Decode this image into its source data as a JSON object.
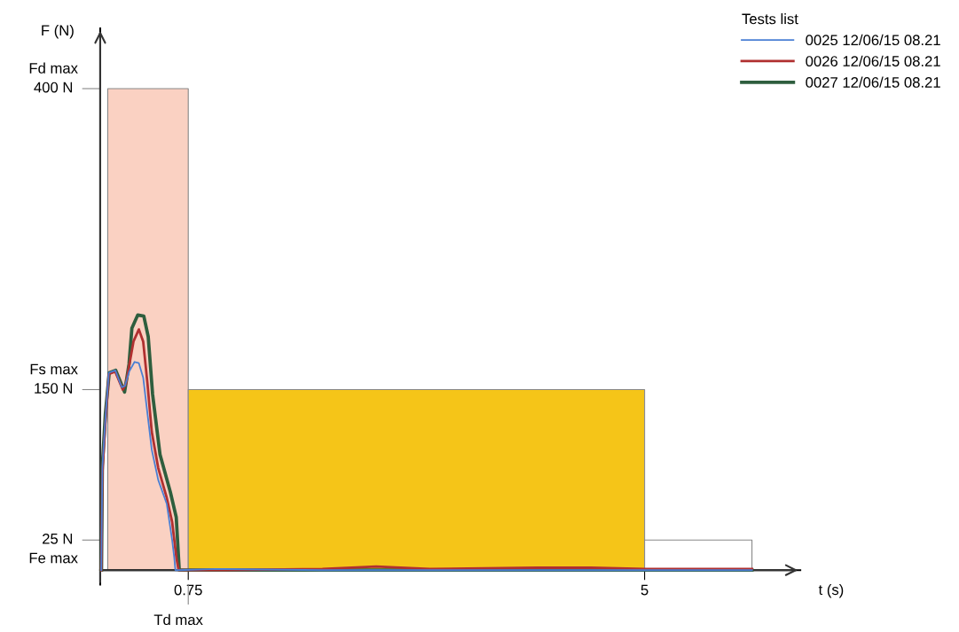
{
  "chart_data": {
    "type": "line",
    "xlabel": "t (s)",
    "ylabel": "F (N)",
    "legend_title": "Tests list",
    "legend": "top right",
    "grid": false,
    "marker": "none",
    "line_style": "solid",
    "xlim": [
      -0.07,
      6.45
    ],
    "ylim": [
      -12,
      450
    ],
    "xticks": [
      0.75,
      5
    ],
    "yticks": [
      {
        "value": 25,
        "label": "25 N"
      },
      {
        "value": 150,
        "label": "150 N"
      },
      {
        "value": 400,
        "label": "400 N"
      }
    ],
    "ref_lines": [
      {
        "axis": "y",
        "value": 400,
        "label": "Fd max",
        "color": "#888888"
      },
      {
        "axis": "y",
        "value": 150,
        "label": "Fs max",
        "color": "#888888"
      },
      {
        "axis": "y",
        "value": 25,
        "label": "Fe max",
        "color": "#888888"
      },
      {
        "axis": "x",
        "value": 0.75,
        "label": "Td max",
        "color": "#888888"
      }
    ],
    "series": [
      {
        "type": "area",
        "color": "#fad1c2",
        "x": [
          0,
          0.75
        ],
        "values": [
          400,
          400
        ]
      },
      {
        "type": "area",
        "color": "#f5c518",
        "x": [
          0.75,
          5
        ],
        "values": [
          150,
          150
        ]
      },
      {
        "type": "area",
        "color": "#ffffff",
        "x": [
          5,
          6
        ],
        "values": [
          25,
          25
        ]
      },
      {
        "name": "0025 12/06/15 08.21",
        "color": "#4a7fd4",
        "x": [
          -0.06,
          -0.05,
          -0.02,
          0.01,
          0.07,
          0.13,
          0.16,
          0.2,
          0.25,
          0.29,
          0.33,
          0.37,
          0.41,
          0.47,
          0.55,
          0.6,
          0.62,
          0.63,
          0.66,
          1.0,
          2.0,
          3.0,
          4.0,
          5.0,
          6.0
        ],
        "values": [
          0,
          85,
          128,
          164,
          166,
          152,
          153,
          165,
          173,
          172,
          160,
          130,
          100,
          75,
          55,
          25,
          10,
          0,
          0,
          1,
          0,
          0,
          0,
          0,
          0
        ]
      },
      {
        "name": "0026 12/06/15 08.21",
        "color": "#b03030",
        "x": [
          -0.06,
          -0.05,
          -0.02,
          0.01,
          0.07,
          0.14,
          0.17,
          0.2,
          0.24,
          0.29,
          0.33,
          0.37,
          0.41,
          0.47,
          0.55,
          0.6,
          0.64,
          0.66,
          1.0,
          2.0,
          2.5,
          3.0,
          4.0,
          4.5,
          5.0,
          6.0
        ],
        "values": [
          0,
          80,
          125,
          163,
          165,
          150,
          155,
          170,
          190,
          200,
          190,
          155,
          115,
          85,
          60,
          40,
          10,
          0,
          0,
          1,
          3,
          1,
          2,
          2,
          1,
          1
        ]
      },
      {
        "name": "0027 12/06/15 08.21",
        "color": "#2e5e3e",
        "x": [
          -0.058,
          -0.05,
          -0.022,
          0.014,
          0.074,
          0.157,
          0.198,
          0.225,
          0.28,
          0.336,
          0.377,
          0.418,
          0.487,
          0.583,
          0.638,
          0.666,
          1.0,
          2.0,
          3.0,
          4.0,
          5.0,
          6.0
        ],
        "values": [
          0,
          87,
          130,
          164,
          166,
          148,
          171,
          201,
          212,
          211,
          194,
          146,
          96,
          65,
          44,
          0,
          0,
          0,
          0,
          0,
          0,
          0
        ]
      }
    ]
  }
}
